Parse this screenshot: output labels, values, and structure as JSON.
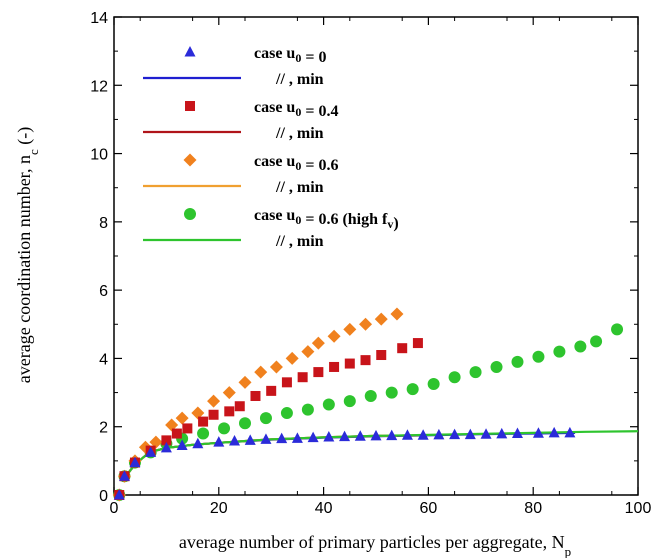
{
  "chart_data": {
    "type": "scatter",
    "xlabel": "average number of primary particles per aggregate, N",
    "xlabel_sub": "p",
    "ylabel": "average coordination number, n",
    "ylabel_sub": "c",
    "ylabel_suffix": " (-)",
    "xlim": [
      0,
      100
    ],
    "ylim": [
      0,
      14
    ],
    "xticks": [
      "0",
      "20",
      "40",
      "60",
      "80",
      "100"
    ],
    "yticks": [
      "0",
      "2",
      "4",
      "6",
      "8",
      "10",
      "12",
      "14"
    ],
    "grid": false,
    "legend_position": "top-left",
    "series": [
      {
        "name": "case u0 = 0",
        "legend": {
          "pre": "case u",
          "sub": "0",
          "post": " = 0"
        },
        "marker": "triangle",
        "color": "#2b2bd9",
        "points": [
          [
            1,
            0.0
          ],
          [
            2,
            0.55
          ],
          [
            4,
            0.95
          ],
          [
            7,
            1.25
          ],
          [
            10,
            1.38
          ],
          [
            13,
            1.45
          ],
          [
            16,
            1.5
          ],
          [
            20,
            1.55
          ],
          [
            23,
            1.58
          ],
          [
            26,
            1.6
          ],
          [
            29,
            1.63
          ],
          [
            32,
            1.65
          ],
          [
            35,
            1.66
          ],
          [
            38,
            1.68
          ],
          [
            41,
            1.7
          ],
          [
            44,
            1.71
          ],
          [
            47,
            1.72
          ],
          [
            50,
            1.73
          ],
          [
            53,
            1.74
          ],
          [
            56,
            1.75
          ],
          [
            59,
            1.75
          ],
          [
            62,
            1.76
          ],
          [
            65,
            1.77
          ],
          [
            68,
            1.77
          ],
          [
            71,
            1.78
          ],
          [
            74,
            1.79
          ],
          [
            77,
            1.8
          ],
          [
            81,
            1.81
          ],
          [
            84,
            1.82
          ],
          [
            87,
            1.82
          ]
        ]
      },
      {
        "name": "// , min (u0 = 0)",
        "legend": {
          "pre": "//   , min",
          "sub": "",
          "post": ""
        },
        "marker": "line",
        "color": "#1f1fd0",
        "points": [
          [
            2,
            0.5
          ],
          [
            4,
            0.9
          ],
          [
            6,
            1.15
          ],
          [
            8,
            1.3
          ],
          [
            10,
            1.38
          ],
          [
            15,
            1.47
          ],
          [
            20,
            1.53
          ],
          [
            30,
            1.62
          ],
          [
            40,
            1.68
          ],
          [
            50,
            1.72
          ],
          [
            60,
            1.75
          ],
          [
            70,
            1.78
          ],
          [
            80,
            1.8
          ],
          [
            88,
            1.82
          ]
        ]
      },
      {
        "name": "case u0 = 0.4",
        "legend": {
          "pre": "case u",
          "sub": "0",
          "post": " = 0.4"
        },
        "marker": "square",
        "color": "#c8141a",
        "points": [
          [
            1,
            0.0
          ],
          [
            2,
            0.55
          ],
          [
            4,
            0.95
          ],
          [
            7,
            1.3
          ],
          [
            10,
            1.6
          ],
          [
            12,
            1.8
          ],
          [
            14,
            1.95
          ],
          [
            17,
            2.15
          ],
          [
            19,
            2.35
          ],
          [
            22,
            2.45
          ],
          [
            24,
            2.6
          ],
          [
            27,
            2.9
          ],
          [
            30,
            3.05
          ],
          [
            33,
            3.3
          ],
          [
            36,
            3.45
          ],
          [
            39,
            3.6
          ],
          [
            42,
            3.75
          ],
          [
            45,
            3.85
          ],
          [
            48,
            3.95
          ],
          [
            51,
            4.1
          ],
          [
            55,
            4.3
          ],
          [
            58,
            4.45
          ]
        ]
      },
      {
        "name": "// , min (u0 = 0.4)",
        "legend": {
          "pre": "//   , min",
          "sub": "",
          "post": ""
        },
        "marker": "line",
        "color": "#b0141a",
        "points": [
          [
            2,
            0.5
          ],
          [
            4,
            0.9
          ],
          [
            6,
            1.15
          ],
          [
            8,
            1.3
          ],
          [
            10,
            1.38
          ],
          [
            15,
            1.47
          ],
          [
            20,
            1.53
          ],
          [
            30,
            1.63
          ],
          [
            40,
            1.69
          ],
          [
            50,
            1.73
          ],
          [
            58,
            1.75
          ]
        ]
      },
      {
        "name": "case u0 = 0.6",
        "legend": {
          "pre": "case u",
          "sub": "0",
          "post": " = 0.6"
        },
        "marker": "diamond",
        "color": "#f0811e",
        "points": [
          [
            1,
            0.0
          ],
          [
            2,
            0.55
          ],
          [
            4,
            1.0
          ],
          [
            6,
            1.4
          ],
          [
            8,
            1.55
          ],
          [
            11,
            2.05
          ],
          [
            13,
            2.25
          ],
          [
            16,
            2.4
          ],
          [
            19,
            2.75
          ],
          [
            22,
            3.0
          ],
          [
            25,
            3.3
          ],
          [
            28,
            3.6
          ],
          [
            31,
            3.75
          ],
          [
            34,
            4.0
          ],
          [
            37,
            4.2
          ],
          [
            39,
            4.45
          ],
          [
            42,
            4.65
          ],
          [
            45,
            4.85
          ],
          [
            48,
            5.0
          ],
          [
            51,
            5.15
          ],
          [
            54,
            5.3
          ]
        ]
      },
      {
        "name": "// , min (u0 = 0.6)",
        "legend": {
          "pre": "//   , min",
          "sub": "",
          "post": ""
        },
        "marker": "line",
        "color": "#f0a030",
        "points": [
          [
            2,
            0.5
          ],
          [
            4,
            0.9
          ],
          [
            6,
            1.15
          ],
          [
            8,
            1.3
          ],
          [
            10,
            1.38
          ],
          [
            15,
            1.47
          ],
          [
            20,
            1.53
          ],
          [
            30,
            1.63
          ],
          [
            40,
            1.69
          ],
          [
            50,
            1.73
          ],
          [
            54,
            1.74
          ]
        ]
      },
      {
        "name": "case u0 = 0.6 (high fv)",
        "legend": {
          "pre": "case u",
          "sub": "0",
          "post": " = 0.6 (high f",
          "sub2": "v",
          "post2": ")"
        },
        "marker": "circle",
        "color": "#2ec42e",
        "points": [
          [
            1,
            0.0
          ],
          [
            2,
            0.55
          ],
          [
            4,
            0.95
          ],
          [
            7,
            1.25
          ],
          [
            10,
            1.5
          ],
          [
            13,
            1.65
          ],
          [
            17,
            1.8
          ],
          [
            21,
            1.95
          ],
          [
            25,
            2.1
          ],
          [
            29,
            2.25
          ],
          [
            33,
            2.4
          ],
          [
            37,
            2.5
          ],
          [
            41,
            2.65
          ],
          [
            45,
            2.75
          ],
          [
            49,
            2.9
          ],
          [
            53,
            3.0
          ],
          [
            57,
            3.1
          ],
          [
            61,
            3.25
          ],
          [
            65,
            3.45
          ],
          [
            69,
            3.6
          ],
          [
            73,
            3.75
          ],
          [
            77,
            3.9
          ],
          [
            81,
            4.05
          ],
          [
            85,
            4.2
          ],
          [
            89,
            4.35
          ],
          [
            92,
            4.5
          ],
          [
            96,
            4.85
          ]
        ]
      },
      {
        "name": "// , min (high fv)",
        "legend": {
          "pre": "//   , min",
          "sub": "",
          "post": ""
        },
        "marker": "line",
        "color": "#2ec42e",
        "points": [
          [
            2,
            0.5
          ],
          [
            4,
            0.9
          ],
          [
            6,
            1.15
          ],
          [
            8,
            1.3
          ],
          [
            10,
            1.38
          ],
          [
            15,
            1.47
          ],
          [
            20,
            1.53
          ],
          [
            30,
            1.63
          ],
          [
            40,
            1.69
          ],
          [
            50,
            1.73
          ],
          [
            60,
            1.76
          ],
          [
            70,
            1.79
          ],
          [
            80,
            1.82
          ],
          [
            90,
            1.85
          ],
          [
            100,
            1.87
          ]
        ]
      }
    ]
  }
}
